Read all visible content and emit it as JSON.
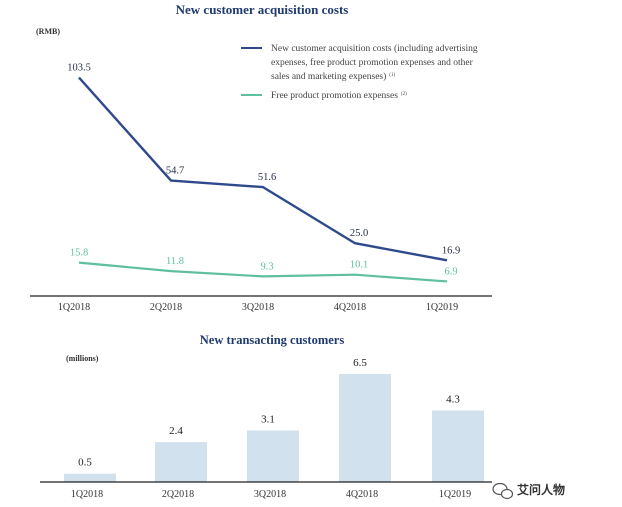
{
  "colors": {
    "title": "#1f3a6f",
    "series_dark": "#2e4a8c",
    "series_green": "#5fbf9f",
    "bar": "#d2e1ee",
    "axis": "#222222"
  },
  "chart_data": [
    {
      "type": "line",
      "title": "New customer acquisition costs",
      "unit_label": "(RMB)",
      "categories": [
        "1Q2018",
        "2Q2018",
        "3Q2018",
        "4Q2018",
        "1Q2019"
      ],
      "ylim": [
        0,
        110
      ],
      "grid": false,
      "legend_position": "top-right",
      "series": [
        {
          "name_lines": [
            "New customer acquisition costs (including advertising",
            "expenses, free product promotion expenses and other",
            "sales and marketing expenses)"
          ],
          "name_sup": "(1)",
          "color": "#2e4a8c",
          "values": [
            103.5,
            54.7,
            51.6,
            25.0,
            16.9
          ],
          "labels": [
            "103.5",
            "54.7",
            "51.6",
            "25.0",
            "16.9"
          ]
        },
        {
          "name": "Free product promotion expenses",
          "name_sup": "(2)",
          "color": "#5fbf9f",
          "values": [
            15.8,
            11.8,
            9.3,
            10.1,
            6.9
          ],
          "labels": [
            "15.8",
            "11.8",
            "9.3",
            "10.1",
            "6.9"
          ]
        }
      ]
    },
    {
      "type": "bar",
      "title": "New transacting customers",
      "unit_label": "(millions)",
      "categories": [
        "1Q2018",
        "2Q2018",
        "3Q2018",
        "4Q2018",
        "1Q2019"
      ],
      "values": [
        0.5,
        2.4,
        3.1,
        6.5,
        4.3
      ],
      "labels": [
        "0.5",
        "2.4",
        "3.1",
        "6.5",
        "4.3"
      ],
      "ylim": [
        0,
        7
      ],
      "grid": false
    }
  ],
  "watermark": {
    "text": "艾问人物",
    "icon": "wechat-icon"
  }
}
